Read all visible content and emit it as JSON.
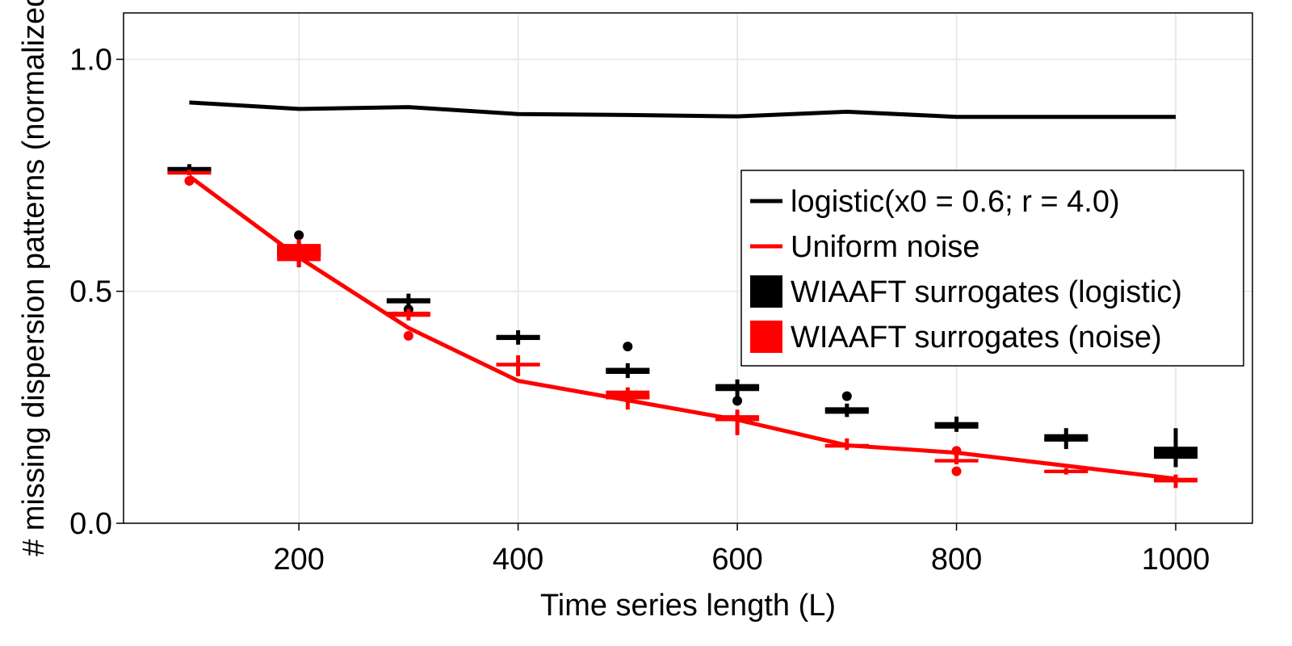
{
  "chart_data": {
    "type": "box",
    "xlabel": "Time series length (L)",
    "ylabel": "# missing dispersion patterns (normalized)",
    "xlim": [
      40,
      1070
    ],
    "ylim": [
      0,
      1.1
    ],
    "xticks": [
      200,
      400,
      600,
      800,
      1000
    ],
    "xtick_labels": [
      "200",
      "400",
      "600",
      "800",
      "1000"
    ],
    "yticks": [
      0,
      0.5,
      1
    ],
    "ytick_labels": [
      "0.0",
      "0.5",
      "1.0"
    ],
    "grid": true,
    "legend_position": "right",
    "lines": [
      {
        "name": "logistic(x0 = 0.6; r = 4.0)",
        "color": "#000000",
        "x": [
          100,
          200,
          300,
          400,
          500,
          600,
          700,
          800,
          900,
          1000
        ],
        "y": [
          0.907,
          0.893,
          0.897,
          0.882,
          0.88,
          0.877,
          0.887,
          0.876,
          0.876,
          0.876
        ]
      },
      {
        "name": "Uniform noise",
        "color": "#ff0000",
        "x": [
          100,
          200,
          300,
          400,
          500,
          600,
          700,
          800,
          900,
          1000
        ],
        "y": [
          0.748,
          0.573,
          0.421,
          0.307,
          0.265,
          0.223,
          0.168,
          0.152,
          0.124,
          0.096
        ]
      }
    ],
    "boxes": [
      {
        "name": "WIAAFT surrogates (logistic)",
        "color": "#000000",
        "x": [
          100,
          200,
          300,
          400,
          500,
          600,
          700,
          800,
          900,
          1000
        ],
        "q1": [
          0.756,
          0.575,
          0.474,
          0.395,
          0.322,
          0.285,
          0.236,
          0.204,
          0.176,
          0.139
        ],
        "median": [
          0.762,
          0.589,
          0.479,
          0.4,
          0.328,
          0.293,
          0.244,
          0.21,
          0.182,
          0.15
        ],
        "q3": [
          0.768,
          0.6,
          0.485,
          0.406,
          0.335,
          0.3,
          0.25,
          0.218,
          0.192,
          0.165
        ],
        "whisker_low": [
          0.753,
          0.552,
          0.466,
          0.385,
          0.313,
          0.265,
          0.229,
          0.197,
          0.16,
          0.121
        ],
        "whisker_high": [
          0.774,
          0.607,
          0.495,
          0.416,
          0.345,
          0.31,
          0.258,
          0.23,
          0.205,
          0.205
        ],
        "outliers": [
          [],
          [
            0.621
          ],
          [
            0.461
          ],
          [],
          [
            0.381
          ],
          [
            0.264
          ],
          [
            0.274
          ],
          [],
          [],
          []
        ]
      },
      {
        "name": "WIAAFT surrogates (noise)",
        "color": "#ff0000",
        "x": [
          100,
          200,
          300,
          400,
          500,
          600,
          700,
          800,
          900,
          1000
        ],
        "q1": [
          0.752,
          0.565,
          0.445,
          0.338,
          0.267,
          0.22,
          0.163,
          0.131,
          0.109,
          0.088
        ],
        "median": [
          0.755,
          0.578,
          0.451,
          0.342,
          0.272,
          0.224,
          0.167,
          0.135,
          0.112,
          0.093
        ],
        "q3": [
          0.759,
          0.602,
          0.456,
          0.346,
          0.286,
          0.233,
          0.171,
          0.138,
          0.115,
          0.098
        ],
        "whisker_low": [
          0.75,
          0.553,
          0.437,
          0.317,
          0.245,
          0.19,
          0.158,
          0.127,
          0.105,
          0.076
        ],
        "whisker_high": [
          0.762,
          0.612,
          0.462,
          0.362,
          0.293,
          0.245,
          0.183,
          0.148,
          0.119,
          0.105
        ],
        "outliers": [
          [
            0.738
          ],
          [],
          [
            0.404
          ],
          [],
          [],
          [],
          [],
          [
            0.156,
            0.112
          ],
          [],
          []
        ]
      }
    ],
    "legend": [
      {
        "label": "logistic(x0 = 0.6; r = 4.0)",
        "kind": "line",
        "color": "#000000"
      },
      {
        "label": "Uniform noise",
        "kind": "line",
        "color": "#ff0000"
      },
      {
        "label": "WIAAFT surrogates (logistic)",
        "kind": "box",
        "color": "#000000"
      },
      {
        "label": "WIAAFT surrogates (noise)",
        "kind": "box",
        "color": "#ff0000"
      }
    ]
  }
}
